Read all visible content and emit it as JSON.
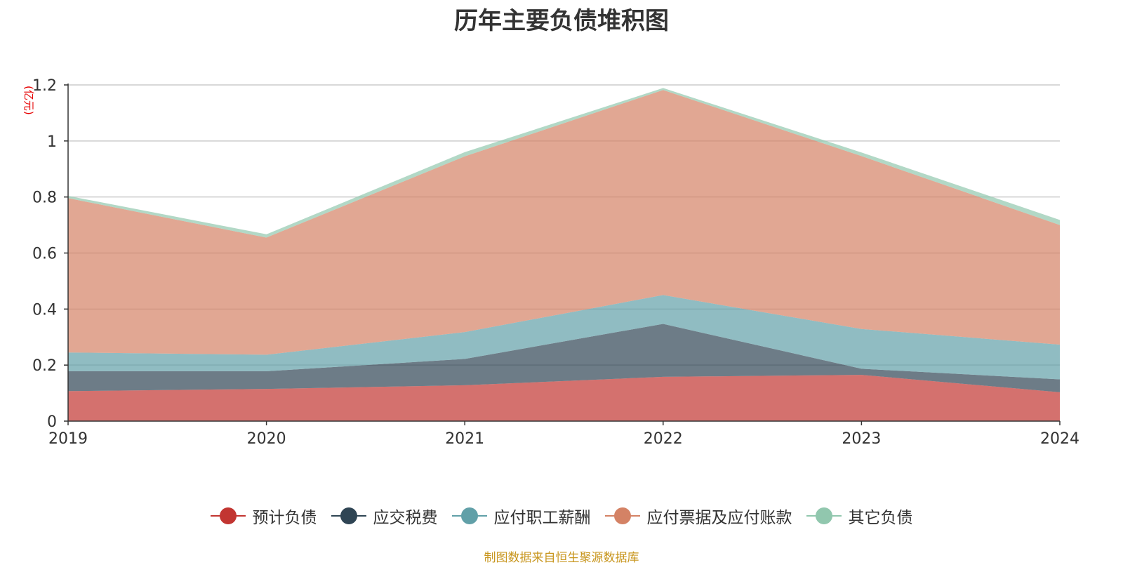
{
  "chart_data": {
    "type": "area",
    "title": "历年主要负债堆积图",
    "unit_label": "(亿元)",
    "x": [
      "2019",
      "2020",
      "2021",
      "2022",
      "2023",
      "2024"
    ],
    "y_ticks": [
      "0",
      "0.2",
      "0.4",
      "0.6",
      "0.8",
      "1",
      "1.2"
    ],
    "ylim": [
      0,
      1.2
    ],
    "stacked": true,
    "grid": true,
    "legend_position": "bottom",
    "series": [
      {
        "name": "预计负债",
        "color": "#c23531",
        "values": [
          0.107,
          0.115,
          0.128,
          0.158,
          0.165,
          0.103
        ]
      },
      {
        "name": "应交税费",
        "color": "#2f4554",
        "values": [
          0.071,
          0.063,
          0.094,
          0.189,
          0.022,
          0.046
        ]
      },
      {
        "name": "应付职工薪酬",
        "color": "#61a0a8",
        "values": [
          0.067,
          0.059,
          0.096,
          0.103,
          0.142,
          0.124
        ]
      },
      {
        "name": "应付票据及应付账款",
        "color": "#d48265",
        "values": [
          0.551,
          0.418,
          0.627,
          0.732,
          0.617,
          0.427
        ]
      },
      {
        "name": "其它负债",
        "color": "#91c7ae",
        "values": [
          0.008,
          0.012,
          0.015,
          0.007,
          0.013,
          0.018
        ]
      }
    ]
  },
  "source": "制图数据来自恒生聚源数据库"
}
